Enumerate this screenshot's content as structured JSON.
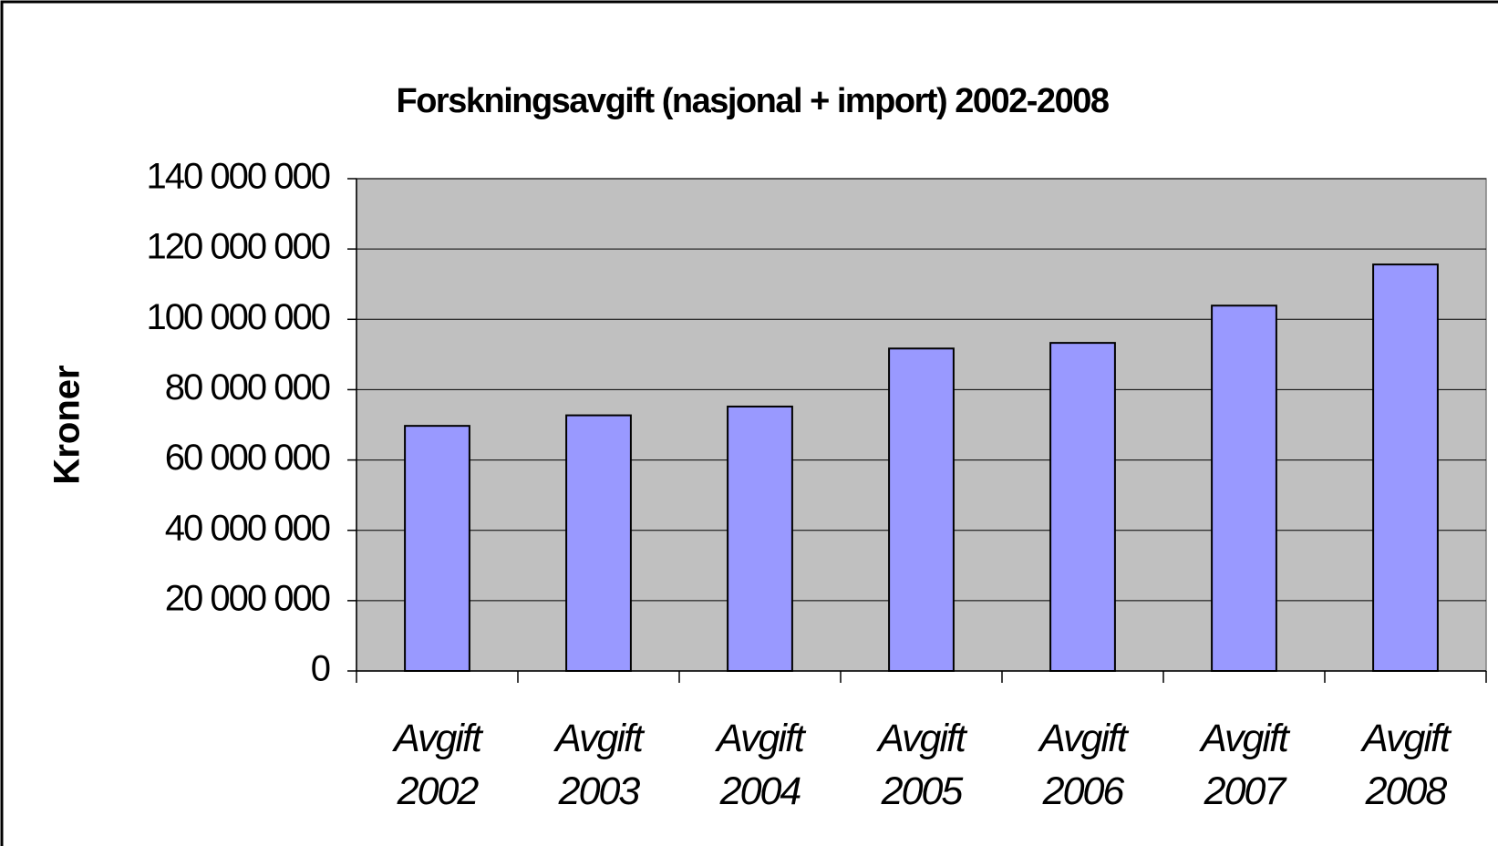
{
  "chart_data": {
    "type": "bar",
    "title": "Forskningsavgift (nasjonal + import) 2002-2008",
    "y_label": "Kroner",
    "categories": [
      "Avgift 2002",
      "Avgift 2003",
      "Avgift 2004",
      "Avgift 2005",
      "Avgift 2006",
      "Avgift 2007",
      "Avgift 2008"
    ],
    "values": [
      69700000,
      72700000,
      75200000,
      91700000,
      93300000,
      103900000,
      115600000
    ],
    "color": "#9999ff",
    "ylim": [
      0,
      140000000
    ],
    "yticks": [
      0,
      {
        "value": 20000000,
        "label": "20 000 000"
      },
      {
        "value": 40000000,
        "label": "40 000 000"
      },
      {
        "value": 60000000,
        "label": "60 000 000"
      },
      {
        "value": 80000000,
        "label": "80 000 000"
      },
      {
        "value": 100000000,
        "label": "100 000 000"
      },
      {
        "value": 120000000,
        "label": "120 000 000"
      },
      {
        "value": 140000000,
        "label": "140 000 000"
      }
    ],
    "grid": true
  }
}
